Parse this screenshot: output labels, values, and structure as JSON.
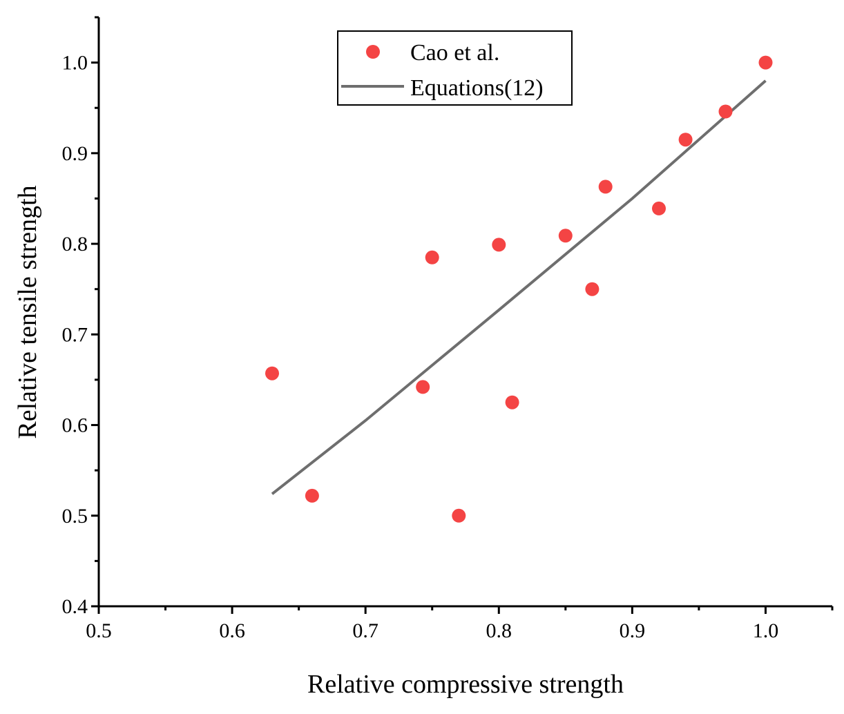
{
  "chart_data": {
    "type": "scatter",
    "title": "",
    "xlabel": "Relative compressive strength",
    "ylabel": "Relative tensile strength",
    "xlim": [
      0.5,
      1.05
    ],
    "ylim": [
      0.4,
      1.05
    ],
    "x_ticks": [
      0.5,
      0.6,
      0.7,
      0.8,
      0.9,
      1.0
    ],
    "x_tick_labels": [
      "0.5",
      "0.6",
      "0.7",
      "0.8",
      "0.9",
      "1.0"
    ],
    "y_ticks": [
      0.4,
      0.5,
      0.6,
      0.7,
      0.8,
      0.9,
      1.0
    ],
    "y_tick_labels": [
      "0.4",
      "0.5",
      "0.6",
      "0.7",
      "0.8",
      "0.9",
      "1.0"
    ],
    "grid": false,
    "legend_position": "top-center",
    "series": [
      {
        "name": "Cao et al.",
        "kind": "scatter",
        "color": "#f44444",
        "x": [
          0.63,
          0.66,
          0.743,
          0.75,
          0.77,
          0.8,
          0.81,
          0.85,
          0.87,
          0.88,
          0.92,
          0.94,
          0.97,
          1.0
        ],
        "y": [
          0.657,
          0.522,
          0.642,
          0.785,
          0.5,
          0.799,
          0.625,
          0.809,
          0.75,
          0.863,
          0.839,
          0.915,
          0.946,
          1.0
        ]
      },
      {
        "name": "Equations(12)",
        "kind": "line",
        "color": "#6e6e6e",
        "x": [
          0.63,
          0.7,
          0.8,
          0.9,
          1.0
        ],
        "y": [
          0.524,
          0.605,
          0.727,
          0.85,
          0.98
        ]
      }
    ]
  }
}
